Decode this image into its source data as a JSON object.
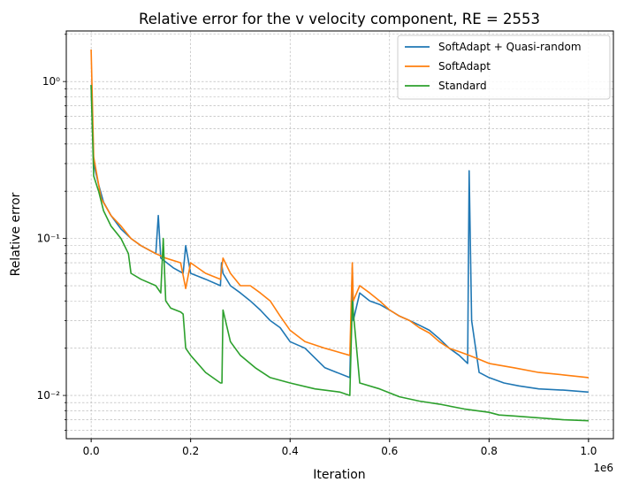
{
  "chart_data": {
    "type": "line",
    "title": "Relative error for the v velocity component, RE = 2553",
    "xlabel": "Iteration",
    "ylabel": "Relative error",
    "x_offset_label": "1e6",
    "x_scale": "linear",
    "y_scale": "log",
    "xlim": [
      -50000,
      1050000
    ],
    "ylim": [
      0.0053,
      2.1
    ],
    "x_ticks": [
      0,
      200000,
      400000,
      600000,
      800000,
      1000000
    ],
    "x_tick_labels": [
      "0.0",
      "0.2",
      "0.4",
      "0.6",
      "0.8",
      "1.0"
    ],
    "y_ticks": [
      0.01,
      0.1,
      1
    ],
    "y_tick_labels": [
      "10⁻²",
      "10⁻¹",
      "10⁰"
    ],
    "grid": true,
    "legend_position": "top-right",
    "series": [
      {
        "name": "SoftAdapt + Quasi-random",
        "color": "#1f77b4",
        "x": [
          0,
          5000,
          15000,
          25000,
          40000,
          60000,
          80000,
          100000,
          130000,
          135000,
          140000,
          165000,
          185000,
          190000,
          200000,
          230000,
          260000,
          262000,
          265000,
          280000,
          300000,
          320000,
          340000,
          360000,
          380000,
          400000,
          430000,
          470000,
          520000,
          525000,
          527000,
          540000,
          560000,
          580000,
          600000,
          620000,
          640000,
          660000,
          680000,
          700000,
          720000,
          740000,
          757000,
          760000,
          765000,
          780000,
          800000,
          830000,
          860000,
          900000,
          950000,
          1000000
        ],
        "y": [
          0.95,
          0.3,
          0.22,
          0.17,
          0.14,
          0.115,
          0.1,
          0.09,
          0.08,
          0.14,
          0.075,
          0.065,
          0.06,
          0.09,
          0.06,
          0.055,
          0.05,
          0.07,
          0.06,
          0.05,
          0.045,
          0.04,
          0.035,
          0.03,
          0.027,
          0.022,
          0.02,
          0.015,
          0.013,
          0.065,
          0.03,
          0.045,
          0.04,
          0.038,
          0.035,
          0.032,
          0.03,
          0.028,
          0.026,
          0.023,
          0.02,
          0.018,
          0.016,
          0.27,
          0.03,
          0.014,
          0.013,
          0.012,
          0.0115,
          0.011,
          0.0108,
          0.0105
        ]
      },
      {
        "name": "SoftAdapt",
        "color": "#ff7f0e",
        "x": [
          0,
          5000,
          20000,
          40000,
          60000,
          80000,
          100000,
          130000,
          150000,
          180000,
          190000,
          200000,
          230000,
          260000,
          265000,
          280000,
          300000,
          320000,
          340000,
          360000,
          380000,
          400000,
          430000,
          470000,
          520000,
          525000,
          527000,
          540000,
          560000,
          580000,
          600000,
          620000,
          640000,
          660000,
          680000,
          700000,
          720000,
          740000,
          760000,
          780000,
          800000,
          850000,
          900000,
          950000,
          1000000
        ],
        "y": [
          1.6,
          0.33,
          0.18,
          0.14,
          0.12,
          0.1,
          0.09,
          0.08,
          0.075,
          0.07,
          0.048,
          0.07,
          0.06,
          0.055,
          0.075,
          0.06,
          0.05,
          0.05,
          0.045,
          0.04,
          0.032,
          0.026,
          0.022,
          0.02,
          0.018,
          0.07,
          0.04,
          0.05,
          0.045,
          0.04,
          0.035,
          0.032,
          0.03,
          0.027,
          0.025,
          0.022,
          0.02,
          0.019,
          0.018,
          0.017,
          0.016,
          0.015,
          0.014,
          0.0135,
          0.013
        ]
      },
      {
        "name": "Standard",
        "color": "#2ca02c",
        "x": [
          0,
          5000,
          15000,
          25000,
          40000,
          60000,
          75000,
          80000,
          100000,
          130000,
          140000,
          145000,
          150000,
          160000,
          180000,
          185000,
          190000,
          200000,
          230000,
          260000,
          263000,
          265000,
          280000,
          300000,
          330000,
          360000,
          400000,
          450000,
          500000,
          520000,
          525000,
          540000,
          580000,
          620000,
          660000,
          700000,
          750000,
          800000,
          820000,
          850000,
          900000,
          950000,
          1000000
        ],
        "y": [
          0.95,
          0.25,
          0.2,
          0.15,
          0.12,
          0.1,
          0.08,
          0.06,
          0.055,
          0.05,
          0.045,
          0.1,
          0.04,
          0.036,
          0.034,
          0.033,
          0.02,
          0.018,
          0.014,
          0.012,
          0.012,
          0.035,
          0.022,
          0.018,
          0.015,
          0.013,
          0.012,
          0.011,
          0.0105,
          0.01,
          0.04,
          0.012,
          0.011,
          0.0098,
          0.0092,
          0.0088,
          0.0082,
          0.0078,
          0.0075,
          0.0074,
          0.0072,
          0.007,
          0.0069
        ]
      }
    ]
  }
}
